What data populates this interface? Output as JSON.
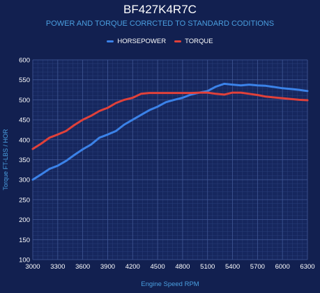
{
  "chart_data": {
    "type": "line",
    "title": "BF427K4R7C",
    "subtitle": "POWER AND TORQUE CORRCTED TO STANDARD CODITIONS",
    "xlabel": "Engine Speed RPM",
    "ylabel": "Torque FT-LBS / HOR",
    "xlim": [
      3000,
      6300
    ],
    "ylim": [
      100,
      600
    ],
    "xticks": [
      3000,
      3300,
      3600,
      3900,
      4200,
      4500,
      4800,
      5100,
      5400,
      5700,
      6000,
      6300
    ],
    "yticks": [
      100,
      150,
      200,
      250,
      300,
      350,
      400,
      450,
      500,
      550,
      600
    ],
    "grid": true,
    "legend_position": "top",
    "series": [
      {
        "name": "HORSEPOWER",
        "color": "#3b82e8",
        "x": [
          3000,
          3100,
          3200,
          3300,
          3400,
          3500,
          3600,
          3700,
          3800,
          3900,
          4000,
          4100,
          4200,
          4300,
          4400,
          4500,
          4600,
          4700,
          4800,
          4900,
          5000,
          5100,
          5200,
          5300,
          5400,
          5500,
          5600,
          5700,
          5800,
          5900,
          6000,
          6100,
          6200,
          6300
        ],
        "values": [
          300,
          313,
          327,
          335,
          347,
          362,
          376,
          388,
          405,
          413,
          422,
          438,
          450,
          462,
          474,
          483,
          494,
          500,
          505,
          513,
          518,
          522,
          533,
          540,
          538,
          536,
          538,
          536,
          535,
          532,
          529,
          527,
          525,
          522
        ]
      },
      {
        "name": "TORQUE",
        "color": "#e0413a",
        "x": [
          3000,
          3100,
          3200,
          3300,
          3400,
          3500,
          3600,
          3700,
          3800,
          3900,
          4000,
          4100,
          4200,
          4300,
          4400,
          4500,
          4600,
          4700,
          4800,
          4900,
          5000,
          5100,
          5200,
          5300,
          5400,
          5500,
          5600,
          5700,
          5800,
          5900,
          6000,
          6100,
          6200,
          6300
        ],
        "values": [
          377,
          390,
          405,
          413,
          422,
          437,
          450,
          460,
          472,
          480,
          492,
          500,
          505,
          515,
          517,
          517,
          517,
          517,
          517,
          517,
          518,
          518,
          515,
          513,
          518,
          518,
          515,
          512,
          508,
          506,
          504,
          502,
          500,
          499
        ]
      }
    ]
  }
}
